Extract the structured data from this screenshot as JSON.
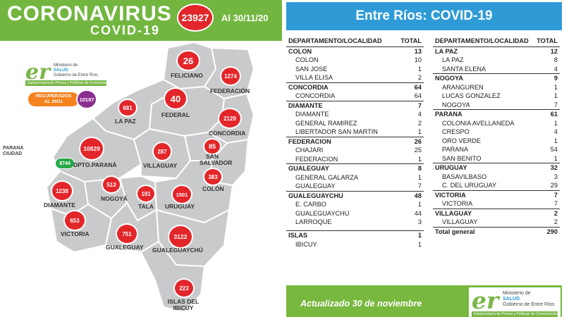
{
  "left": {
    "title": "CORONAVIRUS",
    "subtitle": "COVID-19",
    "total_cases": "23927",
    "date": "Al 30/11/20",
    "logo": {
      "er": "er",
      "ministry_line1": "Ministerio de",
      "ministry_line2": "SALUD",
      "ministry_line3": "Gobierno de Entre Ríos",
      "bar_text": "Subsecretaría de Prensa y Políticas de Comunicación"
    },
    "recovered": {
      "label_line1": "RECUPERADOS",
      "label_line2": "AL 29/11",
      "value": "10197"
    },
    "parana_city": {
      "label_line1": "PARANÁ",
      "label_line2": "CIUDAD",
      "value": "8744"
    },
    "regions": [
      {
        "name": "FELICIANO",
        "value": "26"
      },
      {
        "name": "FEDERACIÓN",
        "value": "1274"
      },
      {
        "name": "FEDERAL",
        "value": "40"
      },
      {
        "name": "LA PAZ",
        "value": "681"
      },
      {
        "name": "CONCORDIA",
        "value": "2129"
      },
      {
        "name": "DPTO.PARANÁ",
        "value": "10829"
      },
      {
        "name": "VILLAGUAY",
        "value": "287"
      },
      {
        "name": "SAN SALVADOR",
        "value": "85"
      },
      {
        "name": "COLÓN",
        "value": "383"
      },
      {
        "name": "DIAMANTE",
        "value": "1238"
      },
      {
        "name": "NOGOYÁ",
        "value": "513"
      },
      {
        "name": "TALA",
        "value": "191"
      },
      {
        "name": "URUGUAY",
        "value": "1501"
      },
      {
        "name": "VICTORIA",
        "value": "653"
      },
      {
        "name": "GUALEGUAY",
        "value": "751"
      },
      {
        "name": "GUALEGUAYCHÚ",
        "value": "3122"
      },
      {
        "name": "ISLAS DEL IBICUY",
        "value": "223"
      }
    ],
    "colors": {
      "header": "#72b640",
      "badge": "#e3262a",
      "map_fill": "#c9cacb",
      "recovered_pill": "#f4821f",
      "recovered_badge": "#8b2f8f",
      "parana_badge": "#2aa84a"
    }
  },
  "right": {
    "title": "Entre Ríos: COVID-19",
    "header_col": "DEPARTAMENTO/LOCALIDAD",
    "header_total": "TOTAL",
    "col1": [
      {
        "kind": "dept",
        "name": "COLON",
        "total": "13"
      },
      {
        "kind": "loc",
        "name": "COLON",
        "total": "10"
      },
      {
        "kind": "loc",
        "name": "SAN JOSE",
        "total": "1"
      },
      {
        "kind": "loc",
        "name": "VILLA ELISA",
        "total": "2"
      },
      {
        "kind": "dept",
        "name": "CONCORDIA",
        "total": "64"
      },
      {
        "kind": "loc",
        "name": "CONCORDIA",
        "total": "64"
      },
      {
        "kind": "dept",
        "name": "DIAMANTE",
        "total": "7"
      },
      {
        "kind": "loc",
        "name": "DIAMANTE",
        "total": "4"
      },
      {
        "kind": "loc",
        "name": "GENERAL RAMIREZ",
        "total": "2"
      },
      {
        "kind": "loc",
        "name": "LIBERTADOR SAN MARTIN",
        "total": "1"
      },
      {
        "kind": "dept",
        "name": "FEDERACION",
        "total": "26"
      },
      {
        "kind": "loc",
        "name": "CHAJARI",
        "total": "25"
      },
      {
        "kind": "loc",
        "name": "FEDERACION",
        "total": "1"
      },
      {
        "kind": "dept",
        "name": "GUALEGUAY",
        "total": "8"
      },
      {
        "kind": "loc",
        "name": "GENERAL GALARZA",
        "total": "1"
      },
      {
        "kind": "loc",
        "name": "GUALEGUAY",
        "total": "7"
      },
      {
        "kind": "dept",
        "name": "GUALEGUAYCHU",
        "total": "48"
      },
      {
        "kind": "loc",
        "name": "E. CARBO",
        "total": "1"
      },
      {
        "kind": "loc",
        "name": "GUALEGUAYCHU",
        "total": "44"
      },
      {
        "kind": "loc",
        "name": "LARROQUE",
        "total": "3"
      },
      {
        "kind": "spacer",
        "name": "",
        "total": ""
      },
      {
        "kind": "dept",
        "name": "ISLAS",
        "total": "1"
      },
      {
        "kind": "loc",
        "name": "IBICUY",
        "total": "1"
      }
    ],
    "col2": [
      {
        "kind": "dept",
        "name": "LA PAZ",
        "total": "12"
      },
      {
        "kind": "loc",
        "name": "LA PAZ",
        "total": "8"
      },
      {
        "kind": "loc",
        "name": "SANTA ELENA",
        "total": "4"
      },
      {
        "kind": "dept",
        "name": "NOGOYA",
        "total": "9"
      },
      {
        "kind": "loc",
        "name": "ARANGUREN",
        "total": "1"
      },
      {
        "kind": "loc",
        "name": "LUCAS GONZALEZ",
        "total": "1"
      },
      {
        "kind": "loc",
        "name": "NOGOYA",
        "total": "7"
      },
      {
        "kind": "dept",
        "name": "PARANA",
        "total": "61"
      },
      {
        "kind": "loc",
        "name": "COLONIA AVELLANEDA",
        "total": "1"
      },
      {
        "kind": "loc",
        "name": "CRESPO",
        "total": "4"
      },
      {
        "kind": "loc",
        "name": "ORO VERDE",
        "total": "1"
      },
      {
        "kind": "loc",
        "name": "PARANA",
        "total": "54"
      },
      {
        "kind": "loc",
        "name": "SAN BENITO",
        "total": "1"
      },
      {
        "kind": "dept",
        "name": "URUGUAY",
        "total": "32"
      },
      {
        "kind": "loc",
        "name": "BASAVILBASO",
        "total": "3"
      },
      {
        "kind": "loc",
        "name": "C. DEL URUGUAY",
        "total": "29"
      },
      {
        "kind": "dept",
        "name": "VICTORIA",
        "total": "7"
      },
      {
        "kind": "loc",
        "name": "VICTORIA",
        "total": "7"
      },
      {
        "kind": "dept",
        "name": "VILLAGUAY",
        "total": "2"
      },
      {
        "kind": "loc",
        "name": "VILLAGUAY",
        "total": "2"
      },
      {
        "kind": "total",
        "name": "Total general",
        "total": "290"
      }
    ],
    "footer": "Actualizado 30 de noviembre",
    "colors": {
      "header": "#2e9bd6",
      "footer": "#78b83e"
    }
  }
}
